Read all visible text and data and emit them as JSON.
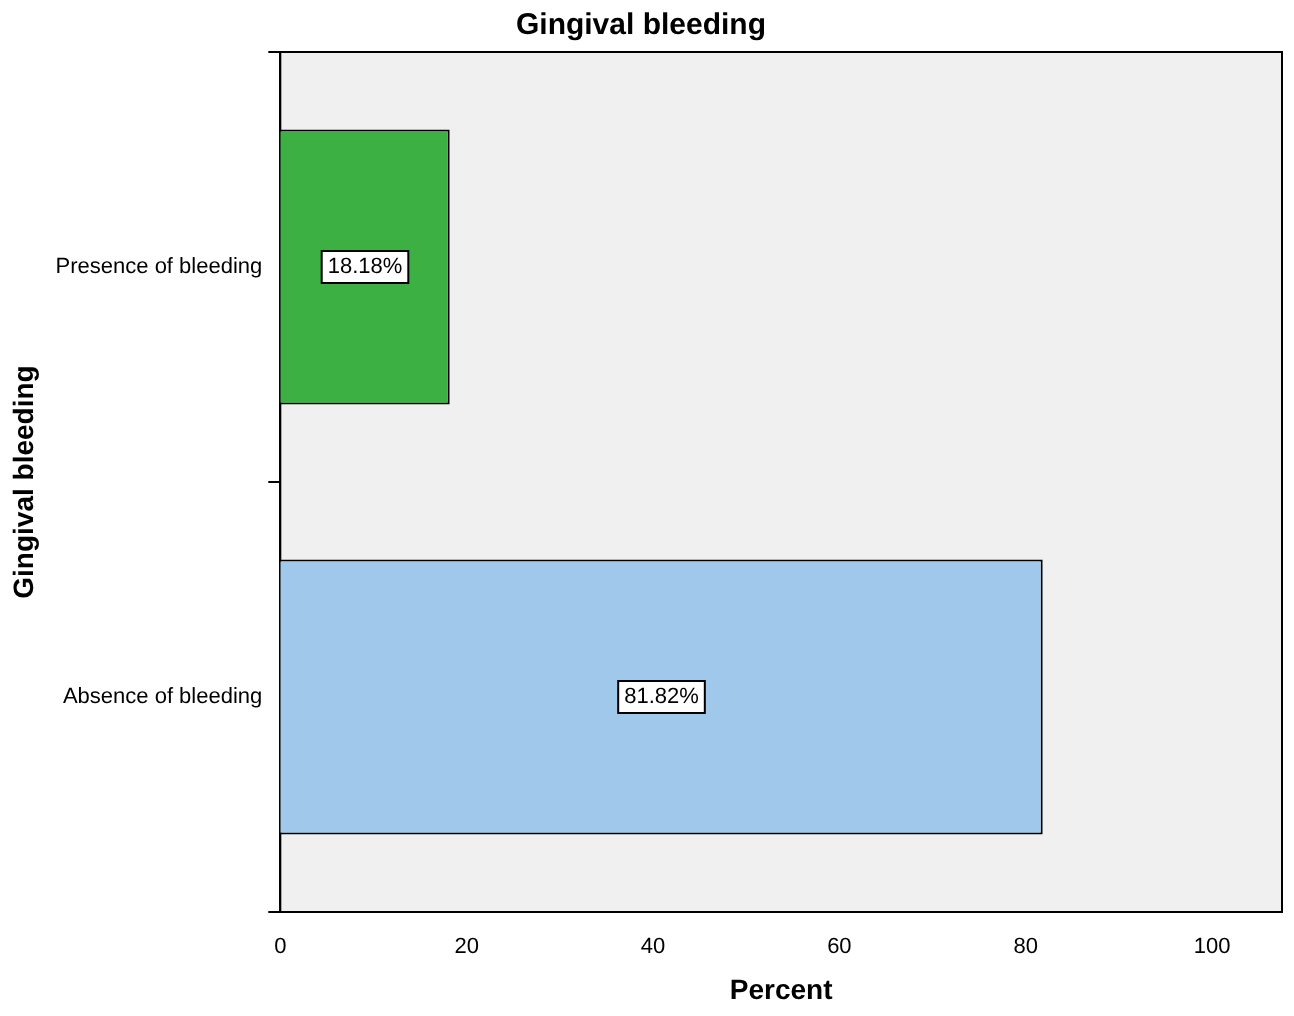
{
  "chart_data": {
    "type": "bar",
    "orientation": "horizontal",
    "title": "Gingival bleeding",
    "xlabel": "Percent",
    "ylabel": "Gingival bleeding",
    "categories": [
      "Presence of bleeding",
      "Absence of bleeding"
    ],
    "values": [
      18.18,
      81.82
    ],
    "colors": [
      "#3cb043",
      "#9fc8ea"
    ],
    "value_labels": [
      "18.18%",
      "81.82%"
    ],
    "xlim": [
      0,
      107.5
    ],
    "xticks": [
      0,
      20,
      40,
      60,
      80,
      100
    ],
    "grid": false,
    "legend": false
  }
}
